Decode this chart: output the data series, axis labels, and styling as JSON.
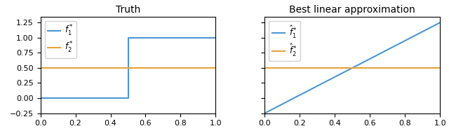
{
  "left_title": "Truth",
  "right_title": "Best linear approximation",
  "xlim": [
    0.0,
    1.0
  ],
  "ylim_left": [
    -0.25,
    1.35
  ],
  "ylim_right": [
    -0.25,
    1.35
  ],
  "color_blue": "#4C96D4",
  "color_orange": "#E8A23A",
  "legend_left": [
    "$f_1^*$",
    "$f_2^*$"
  ],
  "legend_right": [
    "$\\hat{f}_1^*$",
    "$\\hat{f}_2^*$"
  ],
  "step_threshold": 0.5,
  "step_low": 0.0,
  "step_high": 1.0,
  "const_value": 0.5,
  "linear_slope": 1.5,
  "linear_intercept": -0.25,
  "yticks_left": [
    -0.25,
    0.0,
    0.25,
    0.5,
    0.75,
    1.0,
    1.25
  ],
  "xticks": [
    0.0,
    0.2,
    0.4,
    0.6,
    0.8,
    1.0
  ]
}
